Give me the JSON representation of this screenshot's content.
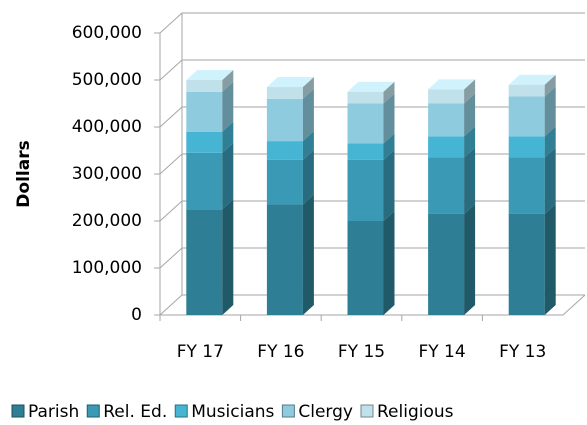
{
  "chart_data": {
    "type": "bar",
    "stacked": true,
    "y_label": "Dollars",
    "categories": [
      "FY 17",
      "FY 16",
      "FY 15",
      "FY 14",
      "FY 13"
    ],
    "series": [
      {
        "name": "Parish",
        "color": "#2e7f95",
        "values": [
          225000,
          235000,
          200000,
          215000,
          215000
        ]
      },
      {
        "name": "Rel. Ed.",
        "color": "#3a9ab5",
        "values": [
          120000,
          95000,
          130000,
          120000,
          120000
        ]
      },
      {
        "name": "Musicians",
        "color": "#45b5d3",
        "values": [
          45000,
          40000,
          35000,
          45000,
          45000
        ]
      },
      {
        "name": "Clergy",
        "color": "#8ecbdf",
        "values": [
          85000,
          90000,
          85000,
          70000,
          85000
        ]
      },
      {
        "name": "Religious",
        "color": "#c0e0ea",
        "values": [
          25000,
          25000,
          25000,
          30000,
          25000
        ]
      }
    ],
    "ylim": [
      0,
      600000
    ],
    "yticks": [
      0,
      {
        "value": 100000,
        "label": "100,000"
      },
      {
        "value": 200000,
        "label": "200,000"
      },
      {
        "value": 300000,
        "label": "300,000"
      },
      {
        "value": 400000,
        "label": "400,000"
      },
      {
        "value": 500000,
        "label": "500,000"
      },
      {
        "value": 600000,
        "label": "600,000"
      }
    ],
    "grid": true,
    "legend": "bottom"
  }
}
